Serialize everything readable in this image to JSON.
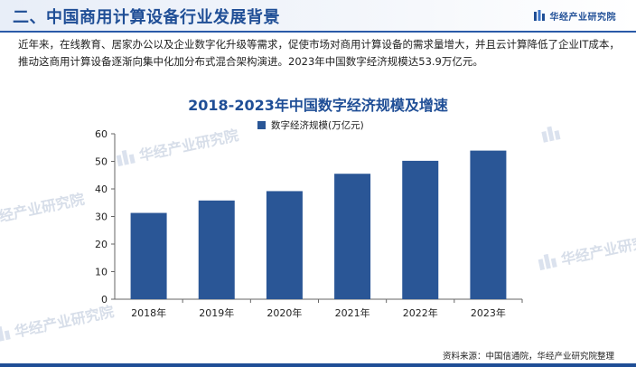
{
  "header": {
    "title": "二、中国商用计算设备行业发展背景",
    "brand": "华经产业研究院"
  },
  "intro": "近年来，在线教育、居家办公以及企业数字化升级等需求，促使市场对商用计算设备的需求量增大，并且云计算降低了企业IT成本，推动这商用计算设备逐渐向集中化加分布式混合架构演进。2023年中国数字经济规模达53.9万亿元。",
  "watermark": "华经产业研究院",
  "source": "资料来源：中国信通院，华经产业研究院整理",
  "colors": {
    "bar": "#2a5696",
    "accent": "#1f4e96"
  },
  "chart_data": {
    "type": "bar",
    "title": "2018-2023年中国数字经济规模及增速",
    "categories": [
      "2018年",
      "2019年",
      "2020年",
      "2021年",
      "2022年",
      "2023年"
    ],
    "series": [
      {
        "name": "数字经济规模(万亿元)",
        "values": [
          31.3,
          35.8,
          39.2,
          45.5,
          50.2,
          53.9
        ]
      }
    ],
    "y_ticks": [
      "0",
      "10",
      "20",
      "30",
      "40",
      "50",
      "60"
    ],
    "ylim": [
      0,
      60
    ],
    "grid": false,
    "legend_position": "top-center"
  }
}
